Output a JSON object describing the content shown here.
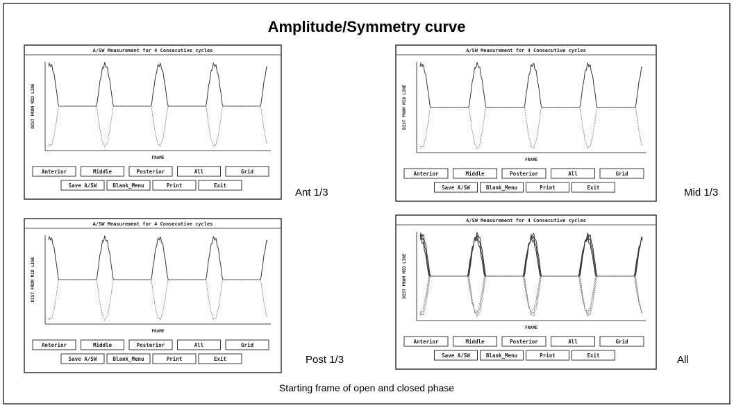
{
  "title": "Amplitude/Symmetry curve",
  "caption": "Starting frame of open and closed phase",
  "panels": [
    {
      "label": "Ant 1/3",
      "window_title": "A/SW Measurement for 4 Consecutive cycles",
      "y_axis_label": "DIST FROM MID LINE",
      "x_axis_label": "FRAME",
      "buttons_row1": [
        "Anterior",
        "Middle",
        "Posterior",
        "All",
        "Grid"
      ],
      "buttons_row2": [
        "Save A/SW",
        "Blank_Menu",
        "Print",
        "Exit"
      ]
    },
    {
      "label": "Mid 1/3",
      "window_title": "A/SW Measurement for 4 Consecutive cycles",
      "y_axis_label": "DIST FROM MID LINE",
      "x_axis_label": "FRAME",
      "buttons_row1": [
        "Anterior",
        "Middle",
        "Posterior",
        "All",
        "Grid"
      ],
      "buttons_row2": [
        "Save A/SW",
        "Blank_Menu",
        "Print",
        "Exit"
      ]
    },
    {
      "label": "Post 1/3",
      "window_title": "A/SW Measurement for 4 Consecutive cycles",
      "y_axis_label": "DIST FROM MID LINE",
      "x_axis_label": "FRAME",
      "buttons_row1": [
        "Anterior",
        "Middle",
        "Posterior",
        "All",
        "Grid"
      ],
      "buttons_row2": [
        "Save A/SW",
        "Blank_Menu",
        "Print",
        "Exit"
      ]
    },
    {
      "label": "All",
      "window_title": "A/SW Measurement for 4 Consecutive cycles",
      "y_axis_label": "DIST FROM MID LINE",
      "x_axis_label": "FRAME",
      "buttons_row1": [
        "Anterior",
        "Middle",
        "Posterior",
        "All",
        "Grid"
      ],
      "buttons_row2": [
        "Save A/SW",
        "Blank_Menu",
        "Print",
        "Exit"
      ]
    }
  ]
}
